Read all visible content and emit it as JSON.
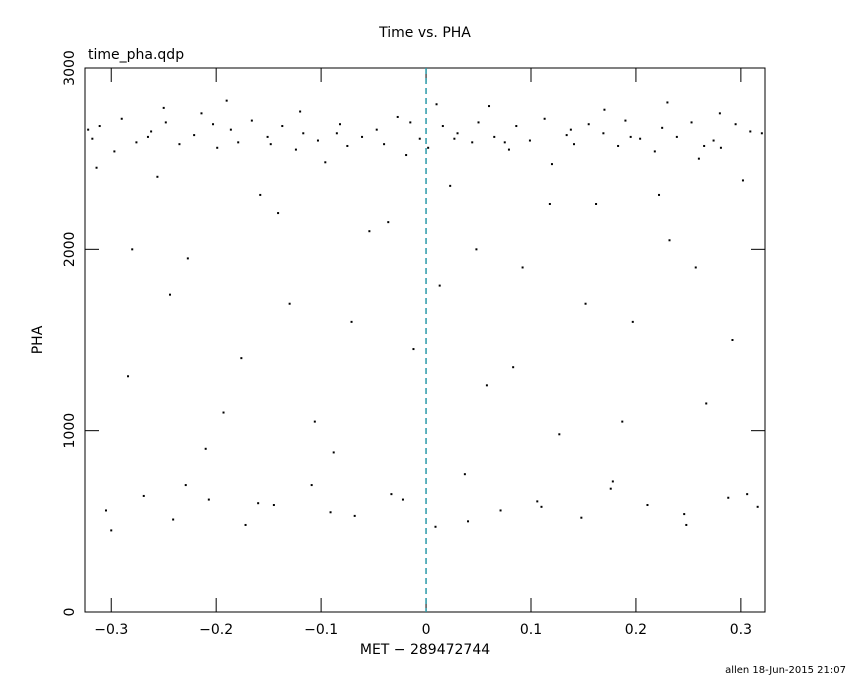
{
  "chart_data": {
    "type": "scatter",
    "title": "Time vs. PHA",
    "subtitle": "time_pha.qdp",
    "x_label": "MET − 289472744",
    "y_label": "PHA",
    "footer": "allen 18-Jun-2015 21:07",
    "color": "#000000",
    "reference_line_x": 0,
    "reference_line_color": "#2a9aa8",
    "grid": false,
    "xlim": [
      -0.325,
      0.323
    ],
    "ylim": [
      0,
      3000
    ],
    "xticks": [
      {
        "value": -0.3,
        "label": "−0.3"
      },
      {
        "value": -0.2,
        "label": "−0.2"
      },
      {
        "value": -0.1,
        "label": "−0.1"
      },
      0,
      0.1,
      0.2,
      0.3
    ],
    "yticks": [
      0,
      1000,
      2000,
      3000
    ],
    "x": [
      -0.318,
      -0.311,
      -0.305,
      -0.297,
      -0.29,
      -0.284,
      -0.276,
      -0.269,
      -0.262,
      -0.256,
      -0.248,
      -0.241,
      -0.235,
      -0.227,
      -0.221,
      -0.214,
      -0.207,
      -0.199,
      -0.193,
      -0.186,
      -0.179,
      -0.172,
      -0.166,
      -0.158,
      -0.151,
      -0.145,
      -0.137,
      -0.13,
      -0.124,
      -0.117,
      -0.109,
      -0.103,
      -0.096,
      -0.088,
      -0.082,
      -0.075,
      -0.068,
      -0.061,
      -0.054,
      -0.047,
      -0.04,
      -0.033,
      -0.027,
      -0.019,
      -0.012,
      -0.006,
      0.002,
      0.009,
      0.016,
      0.023,
      0.03,
      0.037,
      0.044,
      0.05,
      0.058,
      0.065,
      0.071,
      0.079,
      0.086,
      0.092,
      0.099,
      0.106,
      0.113,
      0.12,
      0.127,
      0.134,
      0.141,
      0.148,
      0.155,
      0.162,
      0.169,
      0.176,
      0.183,
      0.19,
      0.197,
      0.204,
      0.211,
      0.218,
      0.225,
      0.232,
      0.239,
      0.246,
      0.253,
      0.26,
      0.267,
      0.274,
      0.281,
      0.288,
      0.295,
      0.302,
      0.309,
      0.316,
      -0.314,
      -0.28,
      -0.244,
      -0.21,
      -0.176,
      -0.141,
      -0.106,
      -0.071,
      -0.036,
      0.013,
      0.048,
      0.083,
      0.118,
      0.152,
      0.187,
      0.222,
      0.257,
      0.292,
      -0.3,
      -0.229,
      -0.16,
      -0.091,
      -0.022,
      0.04,
      0.11,
      0.178,
      0.248,
      0.306,
      -0.322,
      -0.265,
      -0.203,
      -0.148,
      -0.085,
      -0.015,
      0.027,
      0.075,
      0.138,
      0.195,
      0.265,
      0.32,
      -0.25,
      -0.12,
      0.06,
      0.17,
      0.28,
      -0.19,
      0.01,
      0.23
    ],
    "values": [
      2610,
      2680,
      560,
      2540,
      2720,
      1300,
      2590,
      640,
      2650,
      2400,
      2700,
      510,
      2580,
      1950,
      2630,
      2750,
      620,
      2560,
      1100,
      2660,
      2590,
      480,
      2710,
      2300,
      2620,
      590,
      2680,
      1700,
      2550,
      2640,
      700,
      2600,
      2480,
      880,
      2690,
      2570,
      530,
      2620,
      2100,
      2660,
      2580,
      650,
      2730,
      2520,
      1450,
      2610,
      2560,
      470,
      2680,
      2350,
      2640,
      760,
      2590,
      2700,
      1250,
      2620,
      560,
      2550,
      2680,
      1900,
      2600,
      610,
      2720,
      2470,
      980,
      2630,
      2580,
      520,
      2690,
      2250,
      2640,
      680,
      2570,
      2710,
      1600,
      2610,
      590,
      2540,
      2670,
      2050,
      2620,
      540,
      2700,
      2500,
      1150,
      2600,
      2560,
      630,
      2690,
      2380,
      2650,
      580,
      2450,
      2000,
      1750,
      900,
      1400,
      2200,
      1050,
      1600,
      2150,
      1800,
      2000,
      1350,
      2250,
      1700,
      1050,
      2300,
      1900,
      1500,
      450,
      700,
      600,
      550,
      620,
      500,
      580,
      720,
      480,
      650,
      2660,
      2620,
      2690,
      2580,
      2640,
      2700,
      2610,
      2590,
      2660,
      2620,
      2570,
      2640,
      2780,
      2760,
      2790,
      2770,
      2750,
      2820,
      2800,
      2810
    ]
  }
}
